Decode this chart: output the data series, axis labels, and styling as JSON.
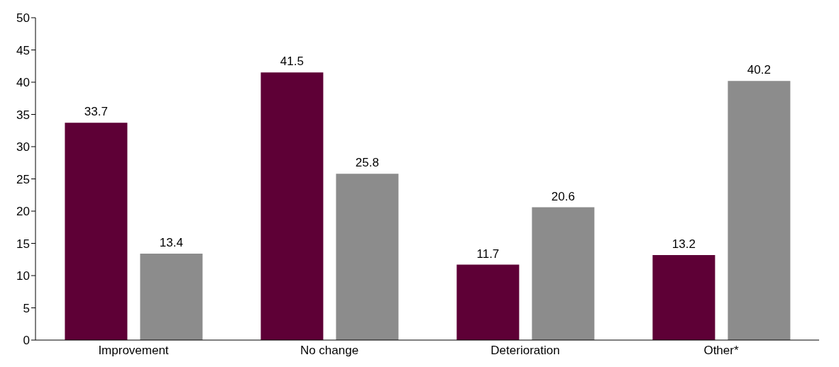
{
  "chart_data": {
    "type": "bar",
    "categories": [
      "Improvement",
      "No change",
      "Deterioration",
      "Other*"
    ],
    "series": [
      {
        "color": "#5e0036",
        "values": [
          33.7,
          41.5,
          11.7,
          13.2
        ]
      },
      {
        "color": "#8c8c8c",
        "values": [
          13.4,
          25.8,
          20.6,
          40.2
        ]
      }
    ],
    "ylim": [
      0,
      50
    ],
    "yticks": [
      0,
      5,
      10,
      15,
      20,
      25,
      30,
      35,
      40,
      45,
      50
    ],
    "grid": false,
    "legend": false,
    "data_labels": true
  }
}
